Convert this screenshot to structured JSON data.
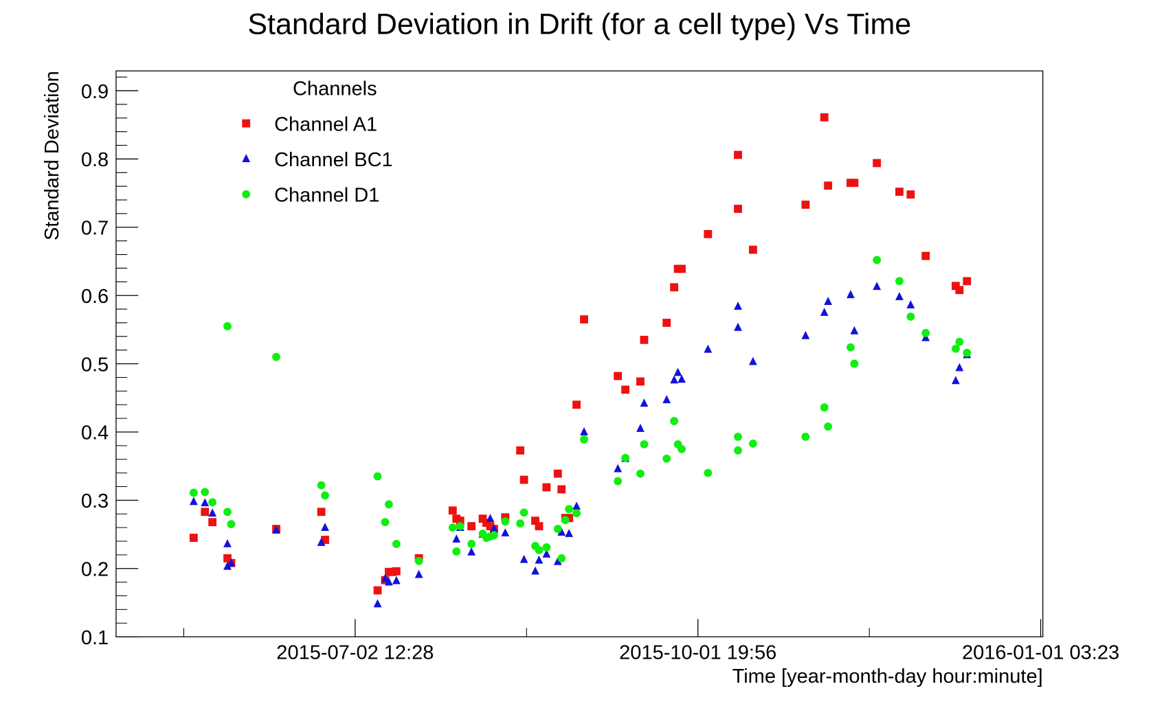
{
  "chart_data": {
    "type": "scatter",
    "title": "Standard Deviation in Drift (for a cell type) Vs Time",
    "y_label": "Standard Deviation",
    "x_label": "Time [year-month-day hour:minute]",
    "legend_title": "Channels",
    "legend": "top-left",
    "xlim": [
      "2015-04-29 20:00",
      "2016-01-01 17:00"
    ],
    "xticks": [
      "2015-07-02 12:28",
      "2015-10-01 19:56",
      "2016-01-01 03:23"
    ],
    "ylim": [
      0.1,
      0.929
    ],
    "yticks": [
      0.1,
      0.2,
      0.3,
      0.4,
      0.5,
      0.6,
      0.7,
      0.8,
      0.9
    ],
    "series": [
      {
        "name": "Channel A1",
        "color": "#ee1111",
        "marker": "square",
        "x": [
          "2015-05-20",
          "2015-05-23",
          "2015-05-25",
          "2015-05-29",
          "2015-05-30",
          "2015-06-11",
          "2015-06-23",
          "2015-06-24",
          "2015-07-08",
          "2015-07-10",
          "2015-07-11",
          "2015-07-12",
          "2015-07-13",
          "2015-07-19",
          "2015-07-28",
          "2015-07-29",
          "2015-07-30",
          "2015-08-02",
          "2015-08-05",
          "2015-08-06",
          "2015-08-07",
          "2015-08-08",
          "2015-08-11",
          "2015-08-15",
          "2015-08-16",
          "2015-08-19",
          "2015-08-20",
          "2015-08-22",
          "2015-08-25",
          "2015-08-26",
          "2015-08-27",
          "2015-08-28",
          "2015-08-30",
          "2015-09-01",
          "2015-09-10",
          "2015-09-12",
          "2015-09-16",
          "2015-09-17",
          "2015-09-23",
          "2015-09-25",
          "2015-09-26",
          "2015-09-27",
          "2015-10-04",
          "2015-10-12",
          "2015-10-12",
          "2015-10-16",
          "2015-10-30",
          "2015-11-04",
          "2015-11-05",
          "2015-11-11",
          "2015-11-12",
          "2015-11-18",
          "2015-11-24",
          "2015-11-27",
          "2015-12-01",
          "2015-12-09",
          "2015-12-10",
          "2015-12-12"
        ],
        "values": [
          0.245,
          0.283,
          0.268,
          0.215,
          0.208,
          0.258,
          0.283,
          0.242,
          0.168,
          0.183,
          0.195,
          0.195,
          0.196,
          0.215,
          0.285,
          0.273,
          0.27,
          0.262,
          0.273,
          0.267,
          0.262,
          0.258,
          0.275,
          0.373,
          0.33,
          0.27,
          0.262,
          0.319,
          0.339,
          0.316,
          0.274,
          0.274,
          0.44,
          0.565,
          0.482,
          0.462,
          0.474,
          0.535,
          0.56,
          0.612,
          0.639,
          0.639,
          0.69,
          0.806,
          0.727,
          0.667,
          0.733,
          0.861,
          0.761,
          0.765,
          0.765,
          0.794,
          0.752,
          0.748,
          0.658,
          0.614,
          0.608,
          0.621
        ]
      },
      {
        "name": "Channel BC1",
        "color": "#1111dd",
        "marker": "triangle",
        "x": [
          "2015-05-20",
          "2015-05-23",
          "2015-05-25",
          "2015-05-29",
          "2015-05-29",
          "2015-05-30",
          "2015-06-11",
          "2015-06-23",
          "2015-06-24",
          "2015-07-08",
          "2015-07-10",
          "2015-07-11",
          "2015-07-13",
          "2015-07-19",
          "2015-07-29",
          "2015-07-30",
          "2015-08-02",
          "2015-08-05",
          "2015-08-07",
          "2015-08-08",
          "2015-08-11",
          "2015-08-16",
          "2015-08-19",
          "2015-08-20",
          "2015-08-22",
          "2015-08-25",
          "2015-08-26",
          "2015-08-28",
          "2015-08-30",
          "2015-09-01",
          "2015-09-10",
          "2015-09-12",
          "2015-09-16",
          "2015-09-17",
          "2015-09-23",
          "2015-09-25",
          "2015-09-26",
          "2015-09-27",
          "2015-10-04",
          "2015-10-12",
          "2015-10-12",
          "2015-10-16",
          "2015-10-30",
          "2015-11-04",
          "2015-11-05",
          "2015-11-11",
          "2015-11-12",
          "2015-11-18",
          "2015-11-24",
          "2015-11-27",
          "2015-12-01",
          "2015-12-09",
          "2015-12-10",
          "2015-12-12"
        ],
        "values": [
          0.298,
          0.296,
          0.281,
          0.236,
          0.203,
          0.208,
          0.256,
          0.238,
          0.26,
          0.148,
          0.185,
          0.18,
          0.182,
          0.191,
          0.243,
          0.26,
          0.224,
          0.25,
          0.273,
          0.258,
          0.252,
          0.213,
          0.196,
          0.212,
          0.221,
          0.21,
          0.253,
          0.251,
          0.291,
          0.4,
          0.346,
          0.361,
          0.405,
          0.442,
          0.447,
          0.476,
          0.487,
          0.477,
          0.521,
          0.584,
          0.553,
          0.503,
          0.541,
          0.575,
          0.591,
          0.601,
          0.548,
          0.613,
          0.598,
          0.586,
          0.538,
          0.475,
          0.494,
          0.513
        ]
      },
      {
        "name": "Channel D1",
        "color": "#11ee11",
        "marker": "circle",
        "x": [
          "2015-05-20",
          "2015-05-23",
          "2015-05-25",
          "2015-05-29",
          "2015-05-29",
          "2015-05-30",
          "2015-06-11",
          "2015-06-23",
          "2015-06-24",
          "2015-07-08",
          "2015-07-10",
          "2015-07-11",
          "2015-07-13",
          "2015-07-19",
          "2015-07-28",
          "2015-07-29",
          "2015-07-30",
          "2015-08-02",
          "2015-08-05",
          "2015-08-06",
          "2015-08-07",
          "2015-08-08",
          "2015-08-11",
          "2015-08-15",
          "2015-08-16",
          "2015-08-19",
          "2015-08-20",
          "2015-08-22",
          "2015-08-25",
          "2015-08-26",
          "2015-08-27",
          "2015-08-28",
          "2015-08-30",
          "2015-09-01",
          "2015-09-10",
          "2015-09-12",
          "2015-09-16",
          "2015-09-17",
          "2015-09-23",
          "2015-09-25",
          "2015-09-26",
          "2015-09-27",
          "2015-10-04",
          "2015-10-12",
          "2015-10-12",
          "2015-10-16",
          "2015-10-30",
          "2015-11-04",
          "2015-11-05",
          "2015-11-11",
          "2015-11-12",
          "2015-11-18",
          "2015-11-24",
          "2015-11-27",
          "2015-12-01",
          "2015-12-09",
          "2015-12-10",
          "2015-12-12"
        ],
        "values": [
          0.311,
          0.312,
          0.297,
          0.555,
          0.283,
          0.265,
          0.51,
          0.322,
          0.307,
          0.335,
          0.268,
          0.294,
          0.236,
          0.211,
          0.26,
          0.225,
          0.262,
          0.236,
          0.251,
          0.245,
          0.247,
          0.249,
          0.269,
          0.266,
          0.282,
          0.233,
          0.227,
          0.231,
          0.258,
          0.215,
          0.271,
          0.287,
          0.281,
          0.389,
          0.328,
          0.362,
          0.339,
          0.382,
          0.361,
          0.416,
          0.382,
          0.375,
          0.34,
          0.393,
          0.373,
          0.383,
          0.393,
          0.436,
          0.408,
          0.524,
          0.5,
          0.652,
          0.621,
          0.569,
          0.545,
          0.522,
          0.532,
          0.516
        ]
      }
    ]
  }
}
